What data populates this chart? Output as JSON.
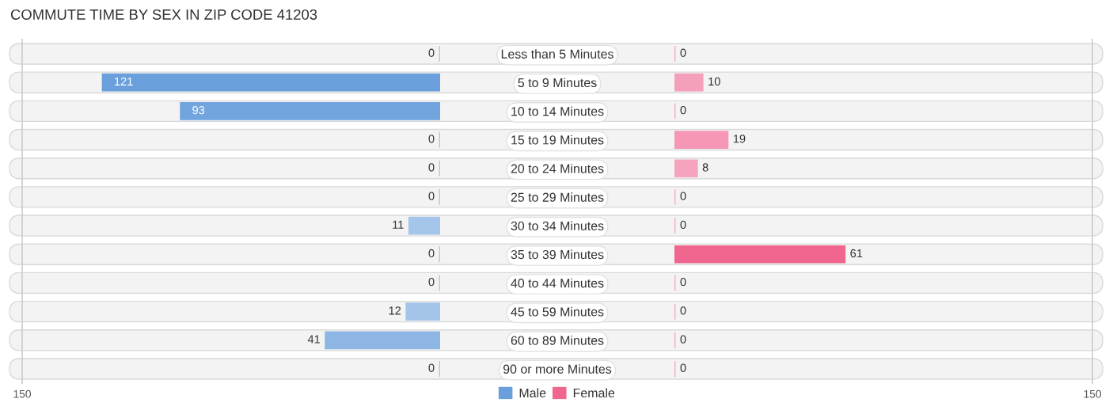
{
  "chart_data": [
    {
      "type": "bar",
      "orientation": "horizontal",
      "title": "COMMUTE TIME BY SEX IN ZIP CODE 41203",
      "categories": [
        "Less than 5 Minutes",
        "5 to 9 Minutes",
        "10 to 14 Minutes",
        "15 to 19 Minutes",
        "20 to 24 Minutes",
        "25 to 29 Minutes",
        "30 to 34 Minutes",
        "35 to 39 Minutes",
        "40 to 44 Minutes",
        "45 to 59 Minutes",
        "60 to 89 Minutes",
        "90 or more Minutes"
      ],
      "series": [
        {
          "name": "Male",
          "color": "#6a9fdc",
          "colors": [
            "#adc9ec",
            "#6a9fdc",
            "#72a4de",
            "#adc9ec",
            "#adc9ec",
            "#adc9ec",
            "#a5c5ea",
            "#adc9ec",
            "#adc9ec",
            "#a4c4ea",
            "#8db6e4",
            "#adc9ec"
          ],
          "values": [
            0,
            121,
            93,
            0,
            0,
            0,
            11,
            0,
            0,
            12,
            41,
            0
          ]
        }
      ],
      "xlim": [
        150,
        0
      ],
      "xticks": [
        150
      ],
      "legend": "bottom",
      "data_labels": true
    },
    {
      "type": "bar",
      "orientation": "horizontal",
      "categories": [
        null,
        null,
        null,
        null,
        null,
        null,
        null,
        null,
        null,
        null,
        null,
        null
      ],
      "series": [
        {
          "name": "Female",
          "color": "#f0668f",
          "colors": [
            "#f7a9c2",
            "#f5a0bb",
            "#f7a9c2",
            "#f597b5",
            "#f6a3be",
            "#f7a9c2",
            "#f7a9c2",
            "#f0668f",
            "#f7a9c2",
            "#f7a9c2",
            "#f7a9c2",
            "#f7a9c2"
          ],
          "values": [
            0,
            10,
            0,
            19,
            8,
            0,
            0,
            61,
            0,
            0,
            0,
            0
          ]
        }
      ],
      "xlim": [
        0,
        150
      ],
      "xticks": [
        150
      ],
      "legend": "bottom",
      "data_labels": true
    }
  ]
}
